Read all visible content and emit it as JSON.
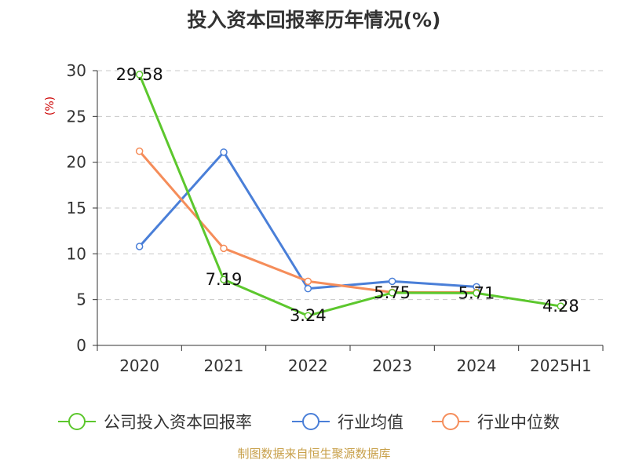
{
  "chart_data": {
    "type": "line",
    "title": "投入资本回报率历年情况(%)",
    "ylabel": "(%)",
    "categories": [
      "2020",
      "2021",
      "2022",
      "2023",
      "2024",
      "2025H1"
    ],
    "ylim": [
      0,
      30
    ],
    "yticks": [
      0,
      5,
      10,
      15,
      20,
      25,
      30
    ],
    "grid": true,
    "legend_position": "bottom",
    "series": [
      {
        "name": "公司投入资本回报率",
        "color": "#5cc72d",
        "values": [
          29.58,
          7.19,
          3.24,
          5.75,
          5.71,
          4.28
        ],
        "labels": [
          "29.58",
          "7.19",
          "3.24",
          "5.75",
          "5.71",
          "4.28"
        ]
      },
      {
        "name": "行业均值",
        "color": "#4a7fd8",
        "values": [
          10.8,
          21.1,
          6.2,
          7.0,
          6.4,
          null
        ]
      },
      {
        "name": "行业中位数",
        "color": "#f58d5a",
        "values": [
          21.2,
          10.6,
          7.0,
          5.8,
          5.8,
          null
        ]
      }
    ]
  },
  "source": "制图数据来自恒生聚源数据库"
}
